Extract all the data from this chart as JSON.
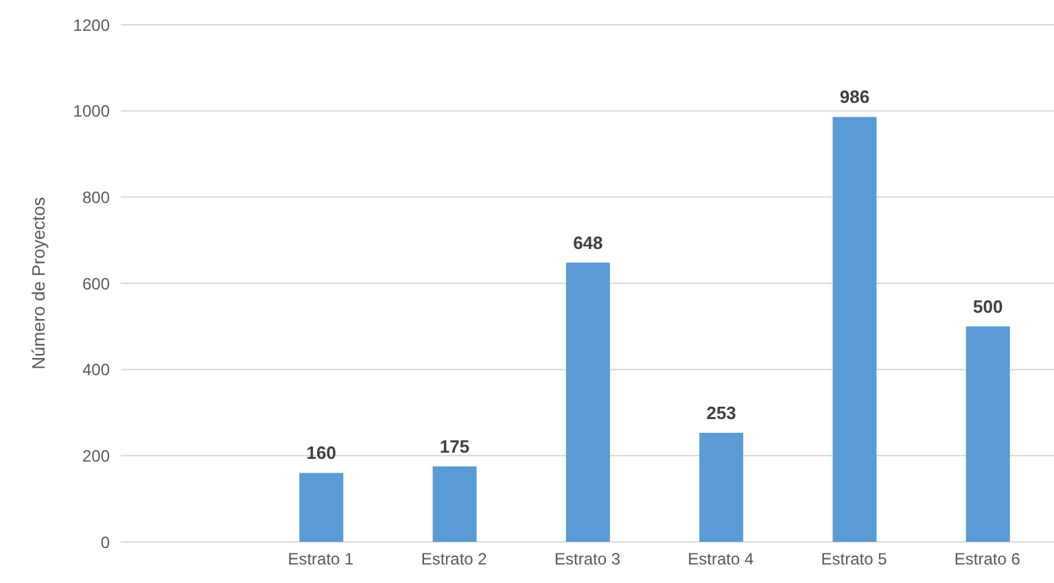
{
  "chart_data": {
    "type": "bar",
    "ylabel": "Número de Proyectos",
    "categories": [
      null,
      "Estrato 1",
      "Estrato 2",
      "Estrato 3",
      "Estrato 4",
      "Estrato 5",
      "Estrato 6"
    ],
    "values": [
      null,
      160,
      175,
      648,
      253,
      986,
      500
    ],
    "color": "#5b9bd5",
    "ylim": [
      0,
      1200
    ],
    "yticks": [
      0,
      200,
      400,
      600,
      800,
      1000,
      1200
    ],
    "grid": "y",
    "data_labels": true
  }
}
